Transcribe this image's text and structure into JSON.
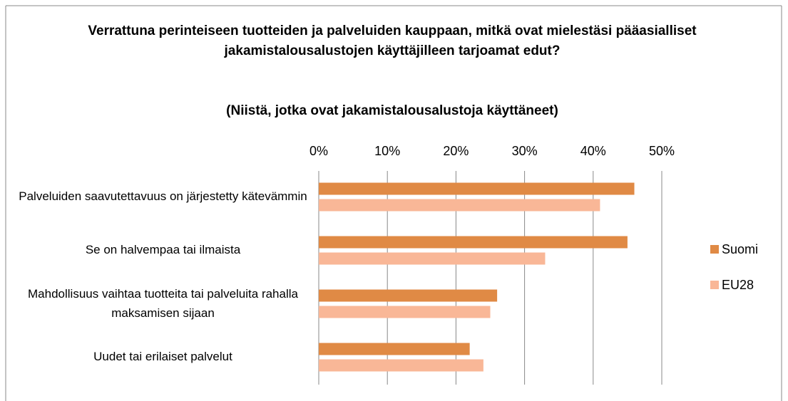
{
  "chart_data": {
    "type": "barh",
    "title": "Verrattuna perinteiseen tuotteiden ja palveluiden kauppaan, mitkä ovat mielestäsi pääasialliset jakamistalousalustojen käyttäjilleen tarjoamat edut?",
    "subtitle": "(Niistä, jotka ovat jakamistalousalustoja käyttäneet)",
    "categories": [
      "Palveluiden saavutettavuus on järjestetty kätevämmin",
      "Se on halvempaa tai ilmaista",
      "Mahdollisuus vaihtaa tuotteita tai palveluita rahalla maksamisen sijaan",
      "Uudet tai erilaiset palvelut"
    ],
    "series": [
      {
        "name": "Suomi",
        "color": "#e08a45",
        "values": [
          46,
          45,
          26,
          22
        ]
      },
      {
        "name": "EU28",
        "color": "#f9b797",
        "values": [
          41,
          33,
          25,
          24
        ]
      }
    ],
    "xlim": [
      0,
      50
    ],
    "xticks": [
      {
        "value": 0,
        "label": "0%"
      },
      {
        "value": 10,
        "label": "10%"
      },
      {
        "value": 20,
        "label": "20%"
      },
      {
        "value": 30,
        "label": "30%"
      },
      {
        "value": 40,
        "label": "40%"
      },
      {
        "value": 50,
        "label": "50%"
      }
    ],
    "grid": true,
    "legend": "right"
  }
}
